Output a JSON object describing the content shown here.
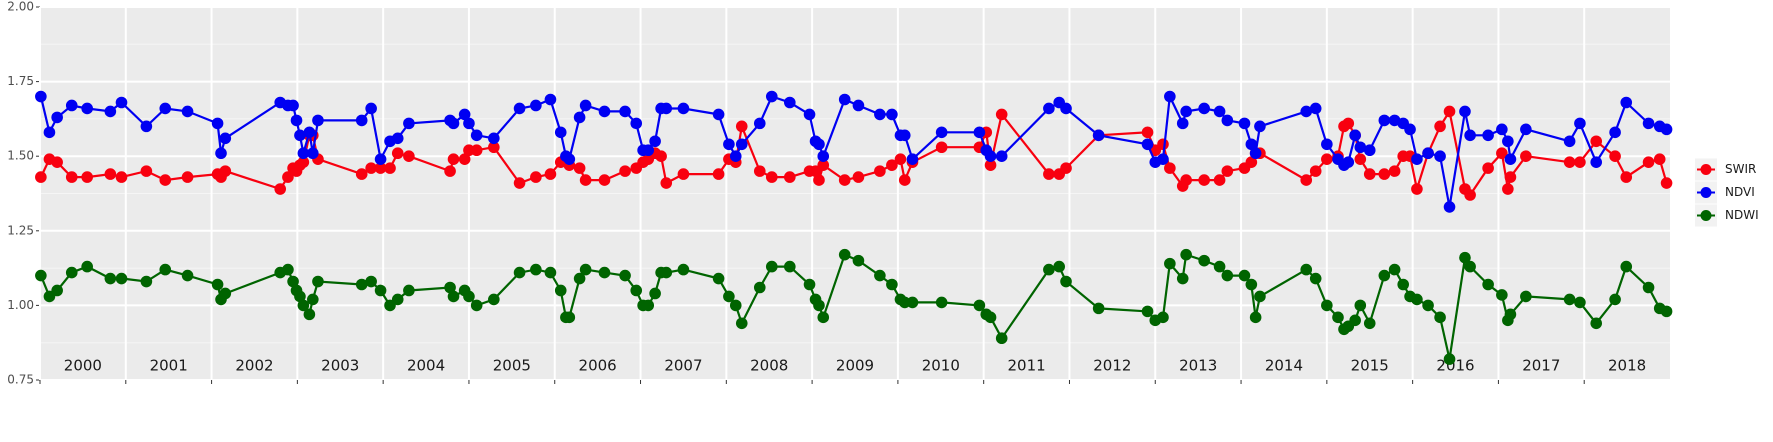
{
  "chart_data": {
    "type": "line",
    "xlim": [
      2000,
      2019
    ],
    "xticks": [
      2000,
      2001,
      2002,
      2003,
      2004,
      2005,
      2006,
      2007,
      2008,
      2009,
      2010,
      2011,
      2012,
      2013,
      2014,
      2015,
      2016,
      2017,
      2018
    ],
    "ylim": [
      0.75,
      2.0
    ],
    "yticks": [
      {
        "value": 0.75,
        "label": "0.75"
      },
      {
        "value": 1.0,
        "label": "1.00"
      },
      {
        "value": 1.25,
        "label": "1.25"
      },
      {
        "value": 1.5,
        "label": "1.50"
      },
      {
        "value": 1.75,
        "label": "1.75"
      },
      {
        "value": 2.0,
        "label": "2.00"
      }
    ],
    "grid": true,
    "legend": "right",
    "x": [
      2000.01,
      2000.11,
      2000.2,
      2000.37,
      2000.55,
      2000.82,
      2000.95,
      2001.24,
      2001.46,
      2001.72,
      2002.07,
      2002.11,
      2002.16,
      2002.8,
      2002.89,
      2002.95,
      2002.99,
      2003.03,
      2003.07,
      2003.14,
      2003.18,
      2003.24,
      2003.75,
      2003.86,
      2003.97,
      2004.08,
      2004.17,
      2004.3,
      2004.78,
      2004.82,
      2004.95,
      2005.0,
      2005.09,
      2005.29,
      2005.59,
      2005.78,
      2005.95,
      2006.07,
      2006.13,
      2006.17,
      2006.29,
      2006.36,
      2006.58,
      2006.82,
      2006.95,
      2007.03,
      2007.09,
      2007.17,
      2007.24,
      2007.3,
      2007.5,
      2007.91,
      2008.03,
      2008.11,
      2008.18,
      2008.39,
      2008.53,
      2008.74,
      2008.97,
      2009.04,
      2009.08,
      2009.13,
      2009.38,
      2009.54,
      2009.79,
      2009.93,
      2010.03,
      2010.08,
      2010.17,
      2010.51,
      2010.95,
      2011.03,
      2011.08,
      2011.21,
      2011.76,
      2011.88,
      2011.96,
      2012.34,
      2012.91,
      2013.0,
      2013.09,
      2013.17,
      2013.32,
      2013.36,
      2013.57,
      2013.75,
      2013.84,
      2014.04,
      2014.12,
      2014.17,
      2014.22,
      2014.76,
      2014.87,
      2015.0,
      2015.13,
      2015.2,
      2015.25,
      2015.33,
      2015.39,
      2015.5,
      2015.67,
      2015.79,
      2015.89,
      2015.97,
      2016.05,
      2016.18,
      2016.32,
      2016.43,
      2016.61,
      2016.67,
      2016.88,
      2017.04,
      2017.11,
      2017.14,
      2017.32,
      2017.83,
      2017.95,
      2018.14,
      2018.36,
      2018.49,
      2018.75,
      2018.88,
      2018.96
    ],
    "series": [
      {
        "name": "SWIR",
        "color": "#f8000f",
        "values": [
          1.43,
          1.49,
          1.48,
          1.43,
          1.43,
          1.44,
          1.43,
          1.45,
          1.42,
          1.43,
          1.44,
          1.43,
          1.45,
          1.39,
          1.43,
          1.46,
          1.45,
          1.47,
          1.48,
          1.57,
          1.57,
          1.49,
          1.44,
          1.46,
          1.46,
          1.46,
          1.51,
          1.5,
          1.45,
          1.49,
          1.49,
          1.52,
          1.52,
          1.53,
          1.41,
          1.43,
          1.44,
          1.48,
          1.49,
          1.47,
          1.46,
          1.42,
          1.42,
          1.45,
          1.46,
          1.48,
          1.49,
          1.51,
          1.5,
          1.41,
          1.44,
          1.44,
          1.49,
          1.48,
          1.6,
          1.45,
          1.43,
          1.43,
          1.45,
          1.45,
          1.42,
          1.47,
          1.42,
          1.43,
          1.45,
          1.47,
          1.49,
          1.42,
          1.48,
          1.53,
          1.53,
          1.58,
          1.47,
          1.64,
          1.44,
          1.44,
          1.46,
          1.57,
          1.58,
          1.52,
          1.54,
          1.46,
          1.4,
          1.42,
          1.42,
          1.42,
          1.45,
          1.46,
          1.48,
          1.51,
          1.51,
          1.42,
          1.45,
          1.49,
          1.5,
          1.6,
          1.61,
          1.57,
          1.49,
          1.44,
          1.44,
          1.45,
          1.5,
          1.5,
          1.39,
          1.51,
          1.6,
          1.65,
          1.39,
          1.37,
          1.46,
          1.51,
          1.39,
          1.43,
          1.5,
          1.48,
          1.48,
          1.55,
          1.5,
          1.43,
          1.48,
          1.49,
          1.41
        ]
      },
      {
        "name": "NDVI",
        "color": "#0000f2",
        "values": [
          1.7,
          1.58,
          1.63,
          1.67,
          1.66,
          1.65,
          1.68,
          1.6,
          1.66,
          1.65,
          1.61,
          1.51,
          1.56,
          1.68,
          1.67,
          1.67,
          1.62,
          1.57,
          1.51,
          1.58,
          1.51,
          1.62,
          1.62,
          1.66,
          1.49,
          1.55,
          1.56,
          1.61,
          1.62,
          1.61,
          1.64,
          1.61,
          1.57,
          1.56,
          1.66,
          1.67,
          1.69,
          1.58,
          1.5,
          1.49,
          1.63,
          1.67,
          1.65,
          1.65,
          1.61,
          1.52,
          1.52,
          1.55,
          1.66,
          1.66,
          1.66,
          1.64,
          1.54,
          1.5,
          1.54,
          1.61,
          1.7,
          1.68,
          1.64,
          1.55,
          1.54,
          1.5,
          1.69,
          1.67,
          1.64,
          1.64,
          1.57,
          1.57,
          1.49,
          1.58,
          1.58,
          1.52,
          1.5,
          1.5,
          1.66,
          1.68,
          1.66,
          1.57,
          1.54,
          1.48,
          1.49,
          1.7,
          1.61,
          1.65,
          1.66,
          1.65,
          1.62,
          1.61,
          1.54,
          1.51,
          1.6,
          1.65,
          1.66,
          1.54,
          1.49,
          1.47,
          1.48,
          1.57,
          1.53,
          1.52,
          1.62,
          1.62,
          1.61,
          1.59,
          1.49,
          1.51,
          1.5,
          1.33,
          1.65,
          1.57,
          1.57,
          1.59,
          1.55,
          1.49,
          1.59,
          1.55,
          1.61,
          1.48,
          1.58,
          1.68,
          1.61,
          1.6,
          1.59
        ]
      },
      {
        "name": "NDWI",
        "color": "#006400",
        "values": [
          1.1,
          1.03,
          1.05,
          1.11,
          1.13,
          1.09,
          1.09,
          1.08,
          1.12,
          1.1,
          1.07,
          1.02,
          1.04,
          1.11,
          1.12,
          1.08,
          1.05,
          1.03,
          1.0,
          0.97,
          1.02,
          1.08,
          1.07,
          1.08,
          1.05,
          1.0,
          1.02,
          1.05,
          1.06,
          1.03,
          1.05,
          1.03,
          1.0,
          1.02,
          1.11,
          1.12,
          1.11,
          1.05,
          0.96,
          0.96,
          1.09,
          1.12,
          1.11,
          1.1,
          1.05,
          1.0,
          1.0,
          1.04,
          1.11,
          1.11,
          1.12,
          1.09,
          1.03,
          1.0,
          0.94,
          1.06,
          1.13,
          1.13,
          1.07,
          1.02,
          1.0,
          0.96,
          1.17,
          1.15,
          1.1,
          1.07,
          1.02,
          1.01,
          1.01,
          1.01,
          1.0,
          0.97,
          0.96,
          0.89,
          1.12,
          1.13,
          1.08,
          0.99,
          0.98,
          0.95,
          0.96,
          1.14,
          1.09,
          1.17,
          1.15,
          1.13,
          1.1,
          1.1,
          1.07,
          0.96,
          1.03,
          1.12,
          1.09,
          1.0,
          0.96,
          0.92,
          0.93,
          0.95,
          1.0,
          0.94,
          1.1,
          1.12,
          1.07,
          1.03,
          1.02,
          1.0,
          0.96,
          0.82,
          1.16,
          1.13,
          1.07,
          1.035,
          0.95,
          0.97,
          1.03,
          1.02,
          1.01,
          0.94,
          1.02,
          1.13,
          1.06,
          0.99,
          0.98
        ]
      }
    ]
  }
}
